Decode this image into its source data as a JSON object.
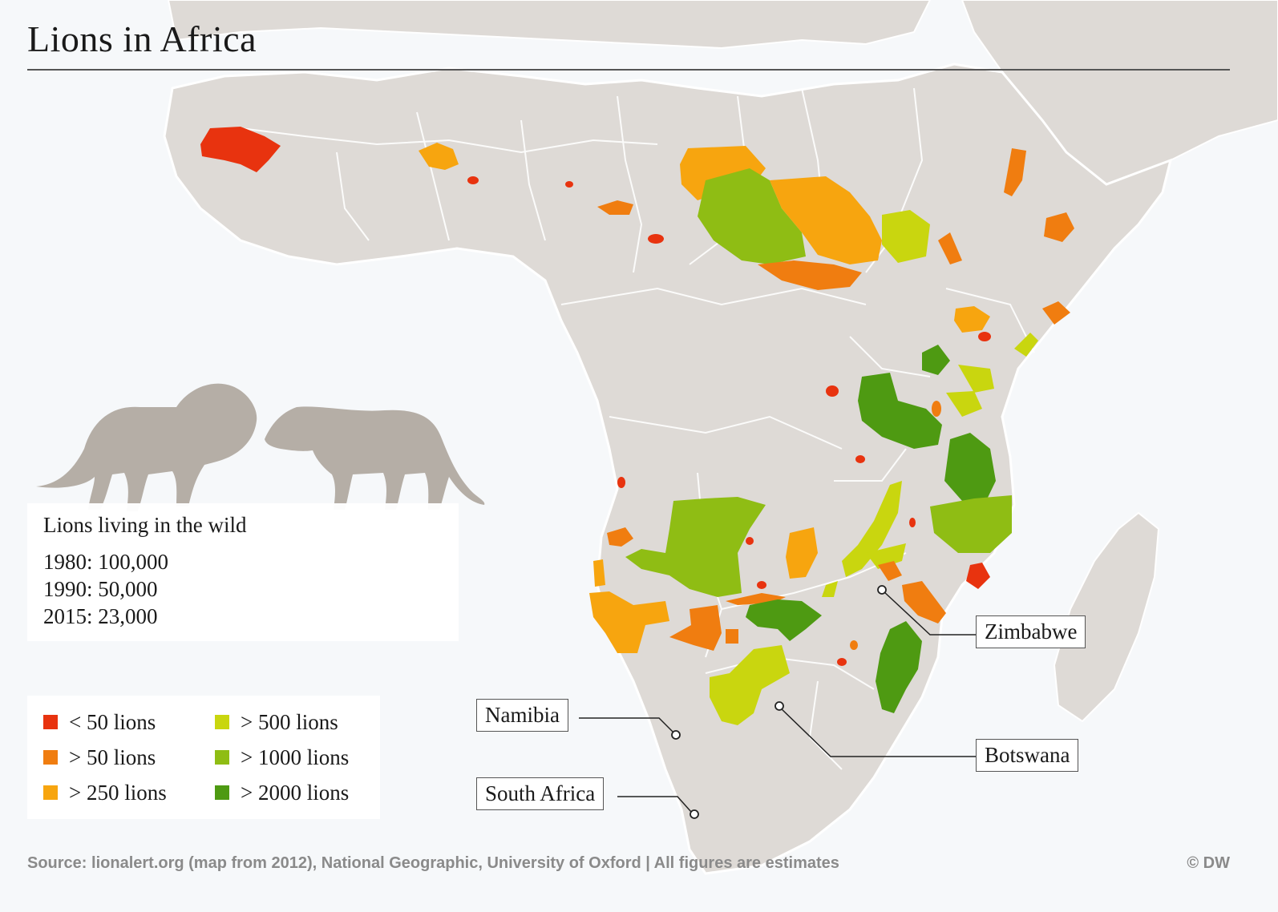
{
  "title": "Lions in Africa",
  "stats": {
    "heading": "Lions living in the wild",
    "lines": [
      "1980: 100,000",
      "1990: 50,000",
      "2015: 23,000"
    ]
  },
  "legend": [
    {
      "label": "< 50 lions",
      "color": "#e8330f"
    },
    {
      "label": "> 50 lions",
      "color": "#f07d10"
    },
    {
      "label": "> 250 lions",
      "color": "#f7a50f"
    },
    {
      "label": "> 500 lions",
      "color": "#c9d60f"
    },
    {
      "label": "> 1000 lions",
      "color": "#8fbd14"
    },
    {
      "label": "> 2000 lions",
      "color": "#4e9a12"
    }
  ],
  "callouts": {
    "namibia": "Namibia",
    "south_africa": "South Africa",
    "zimbabwe": "Zimbabwe",
    "botswana": "Botswana"
  },
  "source": "Source: lionalert.org (map from 2012), National Geographic, University of Oxford | All figures are estimates",
  "credit": "© DW",
  "colors": {
    "ocean": "#f6f8fa",
    "land": "#dedad6",
    "border": "#ffffff",
    "silhouette": "#b5aea6"
  }
}
